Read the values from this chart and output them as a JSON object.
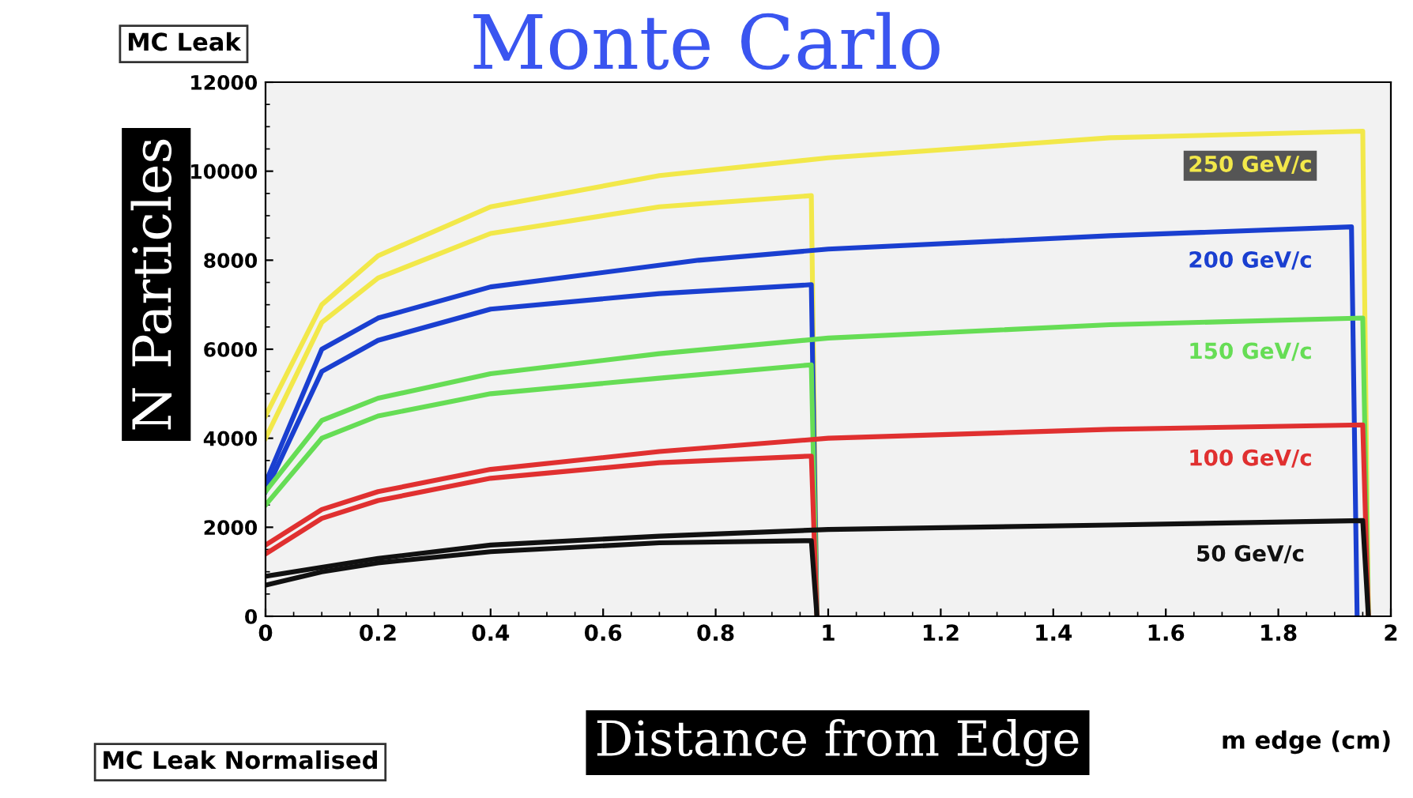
{
  "chart_data": {
    "type": "line",
    "title": "Monte Carlo",
    "xlabel": "Distance from Edge",
    "ylabel": "N Particles",
    "annotations": [
      "MC Leak",
      "MC Leak Normalised",
      "m edge (cm)"
    ],
    "xlim": [
      0,
      2
    ],
    "xticks": [
      0,
      0.2,
      0.4,
      0.6,
      0.8,
      1,
      1.2,
      1.4,
      1.6,
      1.8,
      2
    ],
    "ylim": [
      0,
      12000
    ],
    "yticks": [
      0,
      2000,
      4000,
      6000,
      8000,
      10000,
      12000
    ],
    "grid": false,
    "legend": false,
    "series": [
      {
        "name": "250 GeV/c",
        "color": "#f2e84a",
        "x": [
          0,
          0.1,
          0.2,
          0.4,
          0.7,
          1.0,
          1.5,
          1.95,
          1.96
        ],
        "values": [
          4500,
          7000,
          8100,
          9200,
          9900,
          10300,
          10750,
          10900,
          0
        ]
      },
      {
        "color": "#f2e84a",
        "x": [
          0,
          0.1,
          0.2,
          0.4,
          0.7,
          0.97,
          0.98
        ],
        "values": [
          4000,
          6600,
          7600,
          8600,
          9200,
          9450,
          0
        ]
      },
      {
        "name": "200 GeV/c",
        "color": "#1a3fd0",
        "x": [
          0,
          0.1,
          0.2,
          0.4,
          0.77,
          1.0,
          1.5,
          1.93,
          1.94
        ],
        "values": [
          3000,
          6000,
          6700,
          7400,
          8000,
          8250,
          8550,
          8750,
          0
        ]
      },
      {
        "color": "#1a3fd0",
        "x": [
          0,
          0.1,
          0.2,
          0.4,
          0.7,
          0.97,
          0.98
        ],
        "values": [
          2800,
          5500,
          6200,
          6900,
          7250,
          7450,
          0
        ]
      },
      {
        "name": "150 GeV/c",
        "color": "#66dd55",
        "x": [
          0,
          0.1,
          0.2,
          0.4,
          0.7,
          1.0,
          1.5,
          1.95,
          1.96
        ],
        "values": [
          2800,
          4400,
          4900,
          5450,
          5900,
          6250,
          6550,
          6700,
          0
        ]
      },
      {
        "color": "#66dd55",
        "x": [
          0,
          0.1,
          0.2,
          0.4,
          0.7,
          0.97,
          0.98
        ],
        "values": [
          2500,
          4000,
          4500,
          5000,
          5350,
          5650,
          0
        ]
      },
      {
        "name": "100 GeV/c",
        "color": "#e03030",
        "x": [
          0,
          0.1,
          0.2,
          0.4,
          0.7,
          1.0,
          1.5,
          1.95,
          1.96
        ],
        "values": [
          1600,
          2400,
          2800,
          3300,
          3700,
          4000,
          4200,
          4300,
          0
        ]
      },
      {
        "color": "#e03030",
        "x": [
          0,
          0.1,
          0.2,
          0.4,
          0.7,
          0.97,
          0.98
        ],
        "values": [
          1400,
          2200,
          2600,
          3100,
          3450,
          3600,
          0
        ]
      },
      {
        "name": "50 GeV/c",
        "color": "#111111",
        "x": [
          0,
          0.1,
          0.2,
          0.4,
          0.7,
          1.0,
          1.5,
          1.95,
          1.96
        ],
        "values": [
          900,
          1100,
          1300,
          1600,
          1800,
          1950,
          2050,
          2150,
          0
        ]
      },
      {
        "color": "#111111",
        "x": [
          0,
          0.1,
          0.2,
          0.4,
          0.7,
          0.97,
          0.98
        ],
        "values": [
          700,
          1000,
          1200,
          1450,
          1650,
          1700,
          0
        ]
      }
    ]
  }
}
